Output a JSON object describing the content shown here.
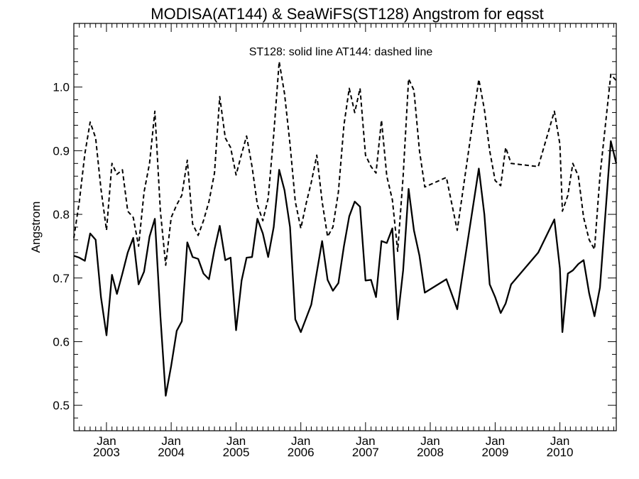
{
  "chart_data": {
    "type": "line",
    "title": "MODISA(AT144) & SeaWiFS(ST128)  Angstrom for eqsst",
    "annotation": "ST128: solid line   AT144: dashed line",
    "ylabel": "Angstrom",
    "xlabel": "",
    "ylim": [
      0.46,
      1.1
    ],
    "xlim": [
      "2002-07-01",
      "2010-11-15"
    ],
    "y_ticks": [
      0.5,
      0.6,
      0.7,
      0.8,
      0.9,
      1.0
    ],
    "y_tick_labels": [
      "0.5",
      "0.6",
      "0.7",
      "0.8",
      "0.9",
      "1.0"
    ],
    "x_ticks": [
      {
        "date": "2003-01-01",
        "month": "Jan",
        "year": "2003"
      },
      {
        "date": "2004-01-01",
        "month": "Jan",
        "year": "2004"
      },
      {
        "date": "2005-01-01",
        "month": "Jan",
        "year": "2005"
      },
      {
        "date": "2006-01-01",
        "month": "Jan",
        "year": "2006"
      },
      {
        "date": "2007-01-01",
        "month": "Jan",
        "year": "2007"
      },
      {
        "date": "2008-01-01",
        "month": "Jan",
        "year": "2008"
      },
      {
        "date": "2009-01-01",
        "month": "Jan",
        "year": "2009"
      },
      {
        "date": "2010-01-01",
        "month": "Jan",
        "year": "2010"
      }
    ],
    "grid": false,
    "series": [
      {
        "line_style": "solid",
        "points": [
          [
            "2002-07-01",
            0.735
          ],
          [
            "2002-08-01",
            0.732
          ],
          [
            "2002-09-01",
            0.727
          ],
          [
            "2002-10-01",
            0.77
          ],
          [
            "2002-11-01",
            0.76
          ],
          [
            "2002-12-01",
            0.67
          ],
          [
            "2003-01-01",
            0.61
          ],
          [
            "2003-02-01",
            0.705
          ],
          [
            "2003-03-01",
            0.675
          ],
          [
            "2003-04-01",
            0.707
          ],
          [
            "2003-05-01",
            0.74
          ],
          [
            "2003-06-01",
            0.763
          ],
          [
            "2003-07-01",
            0.69
          ],
          [
            "2003-08-01",
            0.71
          ],
          [
            "2003-09-01",
            0.765
          ],
          [
            "2003-10-01",
            0.793
          ],
          [
            "2003-11-01",
            0.64
          ],
          [
            "2003-12-01",
            0.515
          ],
          [
            "2004-01-01",
            0.562
          ],
          [
            "2004-02-01",
            0.617
          ],
          [
            "2004-03-01",
            0.632
          ],
          [
            "2004-04-01",
            0.756
          ],
          [
            "2004-05-01",
            0.733
          ],
          [
            "2004-06-01",
            0.73
          ],
          [
            "2004-07-01",
            0.707
          ],
          [
            "2004-08-01",
            0.698
          ],
          [
            "2004-09-01",
            0.745
          ],
          [
            "2004-10-01",
            0.782
          ],
          [
            "2004-11-01",
            0.728
          ],
          [
            "2004-12-01",
            0.732
          ],
          [
            "2005-01-01",
            0.618
          ],
          [
            "2005-02-01",
            0.696
          ],
          [
            "2005-03-01",
            0.732
          ],
          [
            "2005-04-01",
            0.733
          ],
          [
            "2005-05-01",
            0.793
          ],
          [
            "2005-06-01",
            0.77
          ],
          [
            "2005-07-01",
            0.733
          ],
          [
            "2005-08-01",
            0.78
          ],
          [
            "2005-09-01",
            0.87
          ],
          [
            "2005-10-01",
            0.838
          ],
          [
            "2005-11-01",
            0.78
          ],
          [
            "2005-12-01",
            0.635
          ],
          [
            "2006-01-01",
            0.615
          ],
          [
            "2006-03-01",
            0.658
          ],
          [
            "2006-05-01",
            0.758
          ],
          [
            "2006-06-01",
            0.697
          ],
          [
            "2006-07-01",
            0.68
          ],
          [
            "2006-08-01",
            0.692
          ],
          [
            "2006-09-01",
            0.75
          ],
          [
            "2006-10-01",
            0.797
          ],
          [
            "2006-11-01",
            0.82
          ],
          [
            "2006-12-01",
            0.812
          ],
          [
            "2007-01-01",
            0.696
          ],
          [
            "2007-02-01",
            0.697
          ],
          [
            "2007-03-01",
            0.67
          ],
          [
            "2007-04-01",
            0.758
          ],
          [
            "2007-05-01",
            0.755
          ],
          [
            "2007-06-01",
            0.778
          ],
          [
            "2007-07-01",
            0.635
          ],
          [
            "2007-08-01",
            0.712
          ],
          [
            "2007-09-01",
            0.84
          ],
          [
            "2007-10-01",
            0.775
          ],
          [
            "2007-11-01",
            0.735
          ],
          [
            "2007-12-01",
            0.677
          ],
          [
            "2008-04-01",
            0.698
          ],
          [
            "2008-06-01",
            0.651
          ],
          [
            "2008-10-01",
            0.872
          ],
          [
            "2008-11-01",
            0.8
          ],
          [
            "2008-12-01",
            0.69
          ],
          [
            "2009-01-01",
            0.67
          ],
          [
            "2009-02-01",
            0.645
          ],
          [
            "2009-03-01",
            0.66
          ],
          [
            "2009-04-01",
            0.69
          ],
          [
            "2009-09-01",
            0.74
          ],
          [
            "2009-12-01",
            0.792
          ],
          [
            "2010-01-01",
            0.715
          ],
          [
            "2010-01-15",
            0.615
          ],
          [
            "2010-02-15",
            0.707
          ],
          [
            "2010-03-15",
            0.712
          ],
          [
            "2010-04-15",
            0.722
          ],
          [
            "2010-05-15",
            0.728
          ],
          [
            "2010-06-15",
            0.676
          ],
          [
            "2010-07-15",
            0.64
          ],
          [
            "2010-08-15",
            0.685
          ],
          [
            "2010-10-15",
            0.915
          ],
          [
            "2010-11-15",
            0.88
          ]
        ]
      },
      {
        "line_style": "dashed",
        "points": [
          [
            "2002-07-01",
            0.763
          ],
          [
            "2002-08-01",
            0.82
          ],
          [
            "2002-09-01",
            0.895
          ],
          [
            "2002-10-01",
            0.945
          ],
          [
            "2002-11-01",
            0.92
          ],
          [
            "2002-12-01",
            0.84
          ],
          [
            "2003-01-01",
            0.775
          ],
          [
            "2003-02-01",
            0.88
          ],
          [
            "2003-03-01",
            0.863
          ],
          [
            "2003-04-01",
            0.87
          ],
          [
            "2003-05-01",
            0.805
          ],
          [
            "2003-06-01",
            0.795
          ],
          [
            "2003-07-01",
            0.75
          ],
          [
            "2003-08-01",
            0.835
          ],
          [
            "2003-09-01",
            0.88
          ],
          [
            "2003-10-01",
            0.962
          ],
          [
            "2003-11-01",
            0.805
          ],
          [
            "2003-12-01",
            0.72
          ],
          [
            "2004-01-01",
            0.795
          ],
          [
            "2004-02-01",
            0.815
          ],
          [
            "2004-03-01",
            0.83
          ],
          [
            "2004-04-01",
            0.885
          ],
          [
            "2004-05-01",
            0.785
          ],
          [
            "2004-06-01",
            0.767
          ],
          [
            "2004-07-01",
            0.79
          ],
          [
            "2004-08-01",
            0.82
          ],
          [
            "2004-09-01",
            0.865
          ],
          [
            "2004-10-01",
            0.985
          ],
          [
            "2004-11-01",
            0.92
          ],
          [
            "2004-12-01",
            0.905
          ],
          [
            "2005-01-01",
            0.862
          ],
          [
            "2005-02-01",
            0.895
          ],
          [
            "2005-03-01",
            0.923
          ],
          [
            "2005-04-01",
            0.875
          ],
          [
            "2005-05-01",
            0.815
          ],
          [
            "2005-06-01",
            0.79
          ],
          [
            "2005-07-01",
            0.825
          ],
          [
            "2005-08-01",
            0.925
          ],
          [
            "2005-09-01",
            1.04
          ],
          [
            "2005-10-01",
            0.99
          ],
          [
            "2005-11-01",
            0.91
          ],
          [
            "2005-12-01",
            0.82
          ],
          [
            "2006-01-01",
            0.778
          ],
          [
            "2006-02-01",
            0.818
          ],
          [
            "2006-03-01",
            0.85
          ],
          [
            "2006-04-01",
            0.893
          ],
          [
            "2006-05-01",
            0.82
          ],
          [
            "2006-06-01",
            0.765
          ],
          [
            "2006-07-01",
            0.78
          ],
          [
            "2006-08-01",
            0.835
          ],
          [
            "2006-09-01",
            0.94
          ],
          [
            "2006-10-01",
            0.998
          ],
          [
            "2006-11-01",
            0.96
          ],
          [
            "2006-12-01",
            0.998
          ],
          [
            "2007-01-01",
            0.893
          ],
          [
            "2007-02-01",
            0.875
          ],
          [
            "2007-03-01",
            0.865
          ],
          [
            "2007-04-01",
            0.948
          ],
          [
            "2007-05-01",
            0.86
          ],
          [
            "2007-06-01",
            0.823
          ],
          [
            "2007-07-01",
            0.742
          ],
          [
            "2007-08-01",
            0.86
          ],
          [
            "2007-09-01",
            1.013
          ],
          [
            "2007-10-01",
            0.995
          ],
          [
            "2007-11-01",
            0.9
          ],
          [
            "2007-12-01",
            0.843
          ],
          [
            "2008-04-01",
            0.858
          ],
          [
            "2008-06-01",
            0.775
          ],
          [
            "2008-10-01",
            1.012
          ],
          [
            "2008-11-01",
            0.965
          ],
          [
            "2008-12-01",
            0.9
          ],
          [
            "2009-01-01",
            0.853
          ],
          [
            "2009-02-01",
            0.845
          ],
          [
            "2009-03-01",
            0.905
          ],
          [
            "2009-04-01",
            0.88
          ],
          [
            "2009-09-01",
            0.875
          ],
          [
            "2009-12-01",
            0.962
          ],
          [
            "2010-01-01",
            0.91
          ],
          [
            "2010-01-15",
            0.805
          ],
          [
            "2010-02-15",
            0.83
          ],
          [
            "2010-03-15",
            0.88
          ],
          [
            "2010-04-15",
            0.86
          ],
          [
            "2010-05-15",
            0.795
          ],
          [
            "2010-06-15",
            0.76
          ],
          [
            "2010-07-15",
            0.745
          ],
          [
            "2010-08-15",
            0.86
          ],
          [
            "2010-10-15",
            1.02
          ],
          [
            "2010-11-15",
            1.01
          ]
        ]
      }
    ]
  }
}
